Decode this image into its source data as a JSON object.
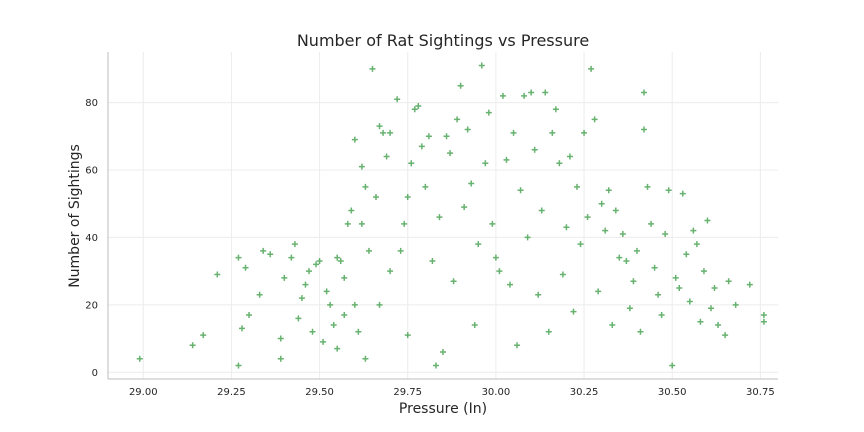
{
  "chart_data": {
    "type": "scatter",
    "title": "Number of Rat Sightings vs Pressure",
    "xlabel": "Pressure (In)",
    "ylabel": "Number of Sightings",
    "xlim": [
      28.9,
      30.8
    ],
    "ylim": [
      -2,
      95
    ],
    "x_ticks": [
      29.0,
      29.25,
      29.5,
      29.75,
      30.0,
      30.25,
      30.5,
      30.75
    ],
    "x_tick_labels": [
      "29.00",
      "29.25",
      "29.50",
      "29.75",
      "30.00",
      "30.25",
      "30.50",
      "30.75"
    ],
    "y_ticks": [
      0,
      20,
      40,
      60,
      80
    ],
    "y_tick_labels": [
      "0",
      "20",
      "40",
      "60",
      "80"
    ],
    "grid": true,
    "marker": "plus",
    "colors": {
      "marker": "#4ca456",
      "grid": "#ececec",
      "spine": "#bdbdbd"
    },
    "points": [
      [
        28.99,
        4
      ],
      [
        29.14,
        8
      ],
      [
        29.17,
        11
      ],
      [
        29.21,
        29
      ],
      [
        29.27,
        2
      ],
      [
        29.27,
        34
      ],
      [
        29.28,
        13
      ],
      [
        29.29,
        31
      ],
      [
        29.3,
        17
      ],
      [
        29.33,
        23
      ],
      [
        29.34,
        36
      ],
      [
        29.36,
        35
      ],
      [
        29.39,
        4
      ],
      [
        29.39,
        10
      ],
      [
        29.4,
        28
      ],
      [
        29.42,
        34
      ],
      [
        29.43,
        38
      ],
      [
        29.44,
        16
      ],
      [
        29.45,
        22
      ],
      [
        29.46,
        26
      ],
      [
        29.47,
        30
      ],
      [
        29.48,
        12
      ],
      [
        29.49,
        32
      ],
      [
        29.5,
        33
      ],
      [
        29.51,
        9
      ],
      [
        29.52,
        24
      ],
      [
        29.53,
        20
      ],
      [
        29.54,
        14
      ],
      [
        29.55,
        34
      ],
      [
        29.55,
        7
      ],
      [
        29.56,
        33
      ],
      [
        29.57,
        17
      ],
      [
        29.57,
        28
      ],
      [
        29.58,
        44
      ],
      [
        29.59,
        48
      ],
      [
        29.6,
        69
      ],
      [
        29.6,
        20
      ],
      [
        29.61,
        12
      ],
      [
        29.62,
        44
      ],
      [
        29.62,
        61
      ],
      [
        29.63,
        4
      ],
      [
        29.63,
        55
      ],
      [
        29.64,
        36
      ],
      [
        29.65,
        90
      ],
      [
        29.66,
        52
      ],
      [
        29.67,
        73
      ],
      [
        29.67,
        20
      ],
      [
        29.68,
        71
      ],
      [
        29.69,
        64
      ],
      [
        29.7,
        71
      ],
      [
        29.7,
        30
      ],
      [
        29.72,
        81
      ],
      [
        29.73,
        36
      ],
      [
        29.74,
        44
      ],
      [
        29.75,
        52
      ],
      [
        29.75,
        11
      ],
      [
        29.76,
        62
      ],
      [
        29.77,
        78
      ],
      [
        29.78,
        79
      ],
      [
        29.79,
        67
      ],
      [
        29.8,
        55
      ],
      [
        29.81,
        70
      ],
      [
        29.82,
        33
      ],
      [
        29.83,
        2
      ],
      [
        29.84,
        46
      ],
      [
        29.85,
        6
      ],
      [
        29.86,
        70
      ],
      [
        29.87,
        65
      ],
      [
        29.88,
        27
      ],
      [
        29.89,
        75
      ],
      [
        29.9,
        85
      ],
      [
        29.91,
        49
      ],
      [
        29.92,
        72
      ],
      [
        29.93,
        56
      ],
      [
        29.94,
        14
      ],
      [
        29.95,
        38
      ],
      [
        29.96,
        91
      ],
      [
        29.97,
        62
      ],
      [
        29.98,
        77
      ],
      [
        29.99,
        44
      ],
      [
        30.0,
        34
      ],
      [
        30.01,
        30
      ],
      [
        30.02,
        82
      ],
      [
        30.03,
        63
      ],
      [
        30.04,
        26
      ],
      [
        30.05,
        71
      ],
      [
        30.06,
        8
      ],
      [
        30.07,
        54
      ],
      [
        30.08,
        82
      ],
      [
        30.09,
        40
      ],
      [
        30.1,
        83
      ],
      [
        30.11,
        66
      ],
      [
        30.12,
        23
      ],
      [
        30.13,
        48
      ],
      [
        30.14,
        83
      ],
      [
        30.15,
        12
      ],
      [
        30.16,
        71
      ],
      [
        30.17,
        78
      ],
      [
        30.18,
        62
      ],
      [
        30.19,
        29
      ],
      [
        30.2,
        43
      ],
      [
        30.21,
        64
      ],
      [
        30.22,
        18
      ],
      [
        30.23,
        55
      ],
      [
        30.24,
        38
      ],
      [
        30.25,
        71
      ],
      [
        30.26,
        46
      ],
      [
        30.27,
        90
      ],
      [
        30.28,
        75
      ],
      [
        30.29,
        24
      ],
      [
        30.3,
        50
      ],
      [
        30.31,
        42
      ],
      [
        30.32,
        54
      ],
      [
        30.33,
        14
      ],
      [
        30.34,
        48
      ],
      [
        30.35,
        34
      ],
      [
        30.36,
        41
      ],
      [
        30.37,
        33
      ],
      [
        30.38,
        19
      ],
      [
        30.39,
        27
      ],
      [
        30.4,
        36
      ],
      [
        30.41,
        12
      ],
      [
        30.42,
        83
      ],
      [
        30.42,
        72
      ],
      [
        30.43,
        55
      ],
      [
        30.44,
        44
      ],
      [
        30.45,
        31
      ],
      [
        30.46,
        23
      ],
      [
        30.47,
        17
      ],
      [
        30.48,
        41
      ],
      [
        30.49,
        54
      ],
      [
        30.5,
        2
      ],
      [
        30.51,
        28
      ],
      [
        30.52,
        25
      ],
      [
        30.53,
        53
      ],
      [
        30.54,
        35
      ],
      [
        30.55,
        21
      ],
      [
        30.56,
        42
      ],
      [
        30.57,
        38
      ],
      [
        30.58,
        15
      ],
      [
        30.59,
        30
      ],
      [
        30.6,
        45
      ],
      [
        30.61,
        19
      ],
      [
        30.62,
        25
      ],
      [
        30.63,
        14
      ],
      [
        30.65,
        11
      ],
      [
        30.66,
        27
      ],
      [
        30.68,
        20
      ],
      [
        30.72,
        26
      ],
      [
        30.76,
        15
      ],
      [
        30.76,
        17
      ]
    ]
  }
}
